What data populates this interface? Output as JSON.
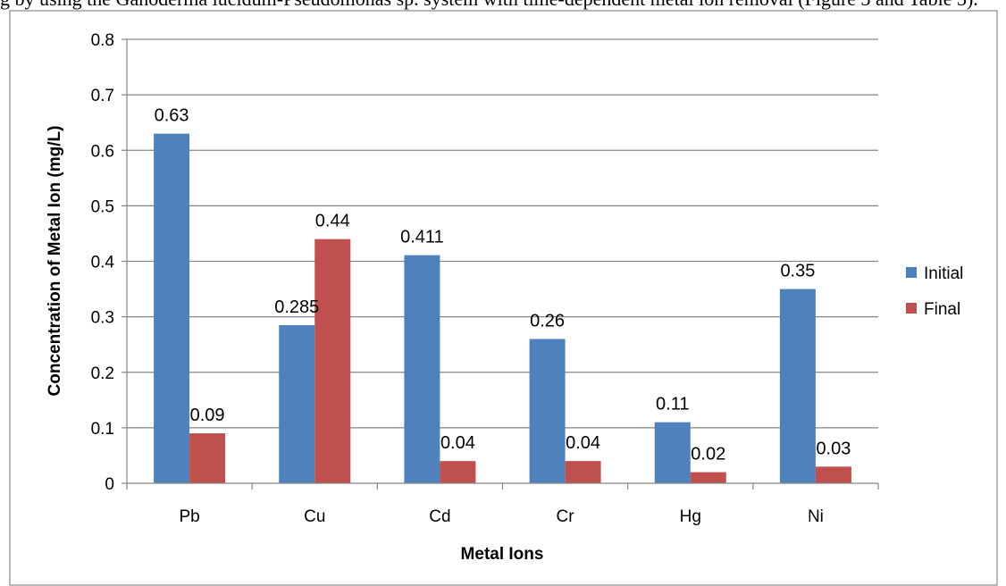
{
  "document": {
    "caption_fragment": "g by using the Ganoderma lucidum-Pseudomonas sp. system with time-dependent metal ion removal (Figure 3 and Table 3)."
  },
  "chart_data": {
    "type": "bar",
    "categories": [
      "Pb",
      "Cu",
      "Cd",
      "Cr",
      "Hg",
      "Ni"
    ],
    "series": [
      {
        "name": "Initial",
        "color": "#4F81BD",
        "values": [
          0.63,
          0.285,
          0.411,
          0.26,
          0.11,
          0.35
        ],
        "labels": [
          "0.63",
          "0.285",
          "0.411",
          "0.26",
          "0.11",
          "0.35"
        ]
      },
      {
        "name": "Final",
        "color": "#C0504D",
        "values": [
          0.09,
          0.44,
          0.04,
          0.04,
          0.02,
          0.03
        ],
        "labels": [
          "0.09",
          "0.44",
          "0.04",
          "0.04",
          "0.02",
          "0.03"
        ]
      }
    ],
    "xlabel": "Metal Ions",
    "ylabel": "Concentration of Metal Ion (mg/L)",
    "ylim": [
      0,
      0.8
    ],
    "yticks": [
      "0",
      "0.1",
      "0.2",
      "0.3",
      "0.4",
      "0.5",
      "0.6",
      "0.7",
      "0.8"
    ],
    "grid": true,
    "legend_position": "right"
  }
}
